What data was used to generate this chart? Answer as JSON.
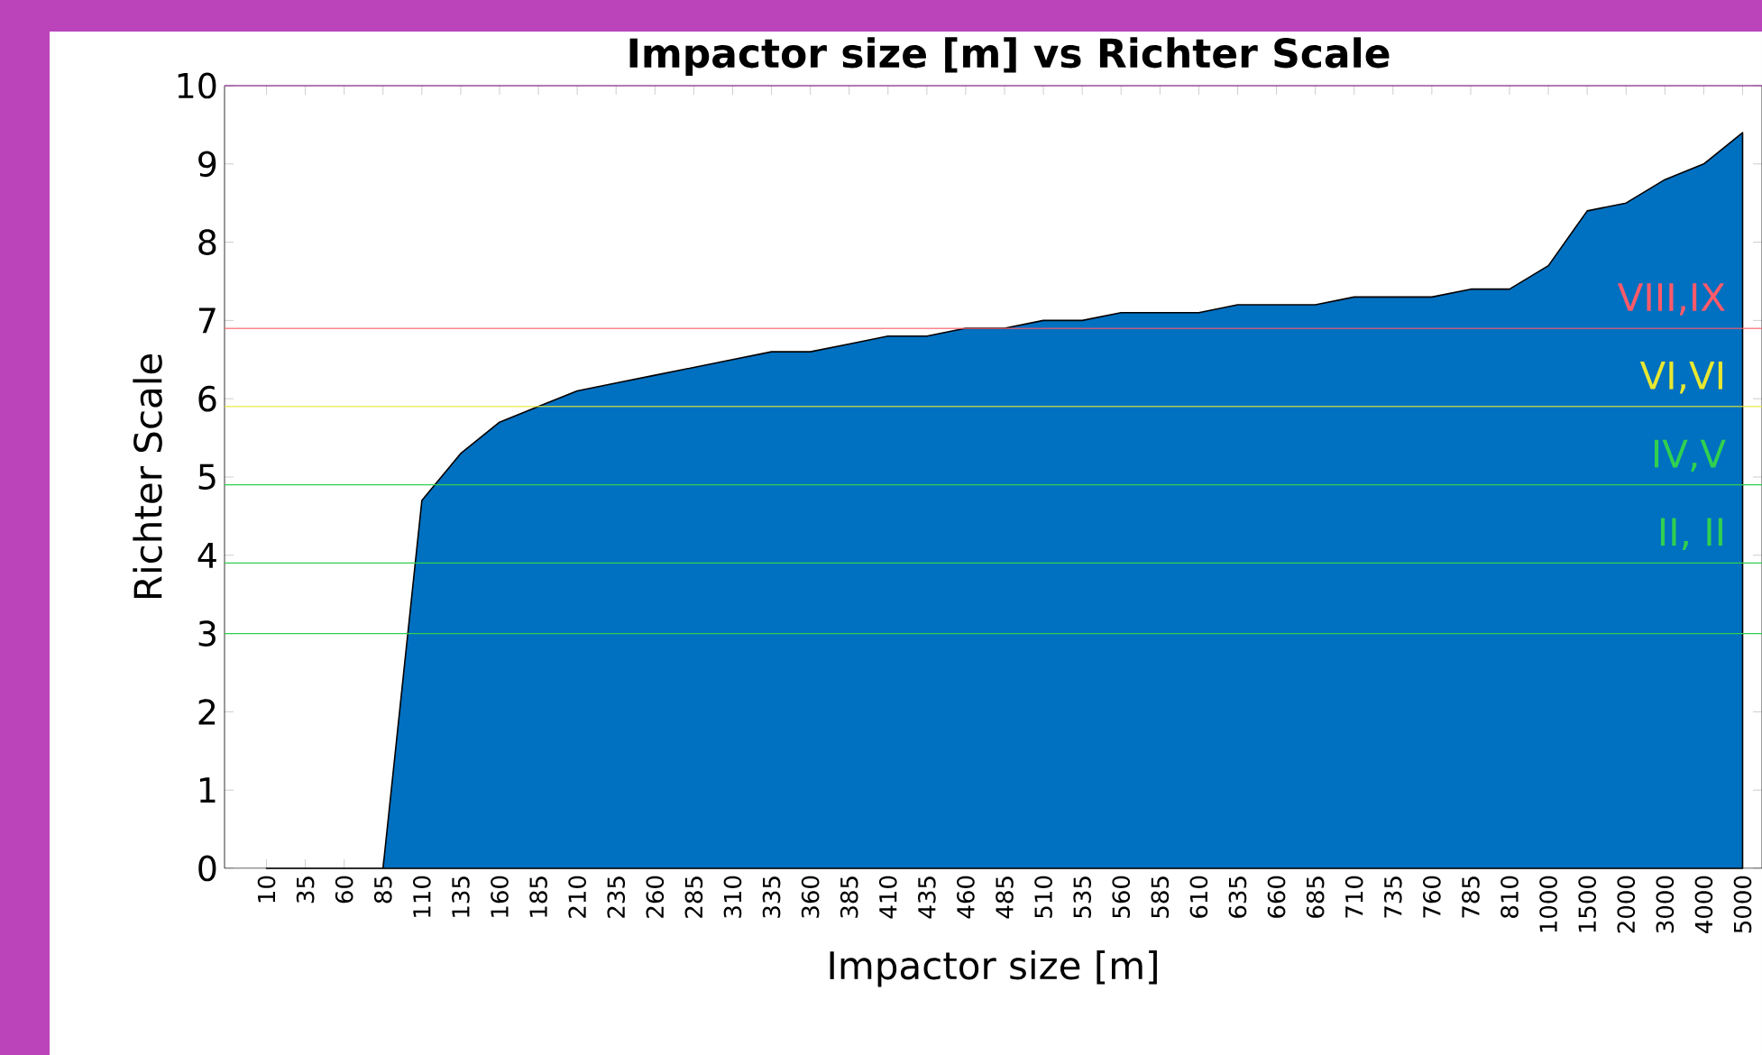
{
  "chart_data": {
    "type": "area",
    "title": "Impactor size [m] vs Richter Scale",
    "xlabel": "Impactor size [m]",
    "ylabel": "Richter Scale",
    "categories": [
      "10",
      "35",
      "60",
      "85",
      "110",
      "135",
      "160",
      "185",
      "210",
      "235",
      "260",
      "285",
      "310",
      "335",
      "360",
      "385",
      "410",
      "435",
      "460",
      "485",
      "510",
      "535",
      "560",
      "585",
      "610",
      "635",
      "660",
      "685",
      "710",
      "735",
      "760",
      "785",
      "810",
      "1000",
      "1500",
      "2000",
      "3000",
      "4000",
      "5000"
    ],
    "values": [
      0,
      0,
      0,
      0,
      4.7,
      5.3,
      5.7,
      5.9,
      6.1,
      6.2,
      6.3,
      6.4,
      6.5,
      6.6,
      6.6,
      6.7,
      6.8,
      6.8,
      6.9,
      6.9,
      7.0,
      7.0,
      7.1,
      7.1,
      7.1,
      7.2,
      7.2,
      7.2,
      7.3,
      7.3,
      7.3,
      7.4,
      7.4,
      7.7,
      8.4,
      8.5,
      8.8,
      9.0,
      9.4
    ],
    "color": "#0070c0",
    "ylim": [
      0,
      10
    ],
    "yticks": [
      0,
      1,
      2,
      3,
      4,
      5,
      6,
      7,
      8,
      9,
      10
    ],
    "ref_lines": [
      {
        "axis": "y",
        "value": 10,
        "color": "#c040c0"
      },
      {
        "axis": "y",
        "value": 6.9,
        "label": "VIII,IX",
        "color": "#ff5a6a"
      },
      {
        "axis": "y",
        "value": 5.9,
        "label": "VI,VI",
        "color": "#e8e830"
      },
      {
        "axis": "y",
        "value": 4.9,
        "label": "IV,V",
        "color": "#30d050"
      },
      {
        "axis": "y",
        "value": 3.9,
        "label": "II, II",
        "color": "#30d050"
      },
      {
        "axis": "y",
        "value": 3.0,
        "color": "#30d050"
      }
    ]
  }
}
